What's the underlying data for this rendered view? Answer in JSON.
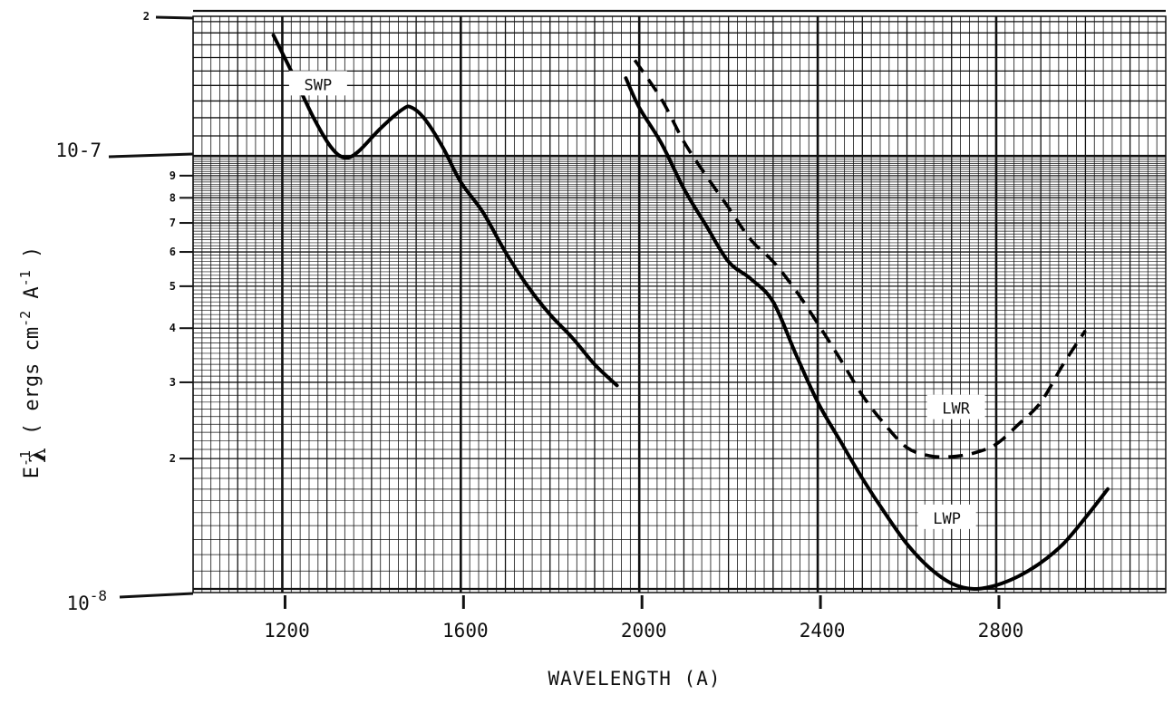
{
  "chart_data": {
    "type": "line",
    "title": "",
    "xlabel": "WAVELENGTH (A)",
    "ylabel": {
      "symbol": "E",
      "superscript": "-1",
      "subscript": "λ",
      "units_open": "( ergs cm",
      "units_exp1": "-2",
      "units_mid": " A",
      "units_exp2": "-1",
      "units_close": " )"
    },
    "x_scale": "linear",
    "y_scale": "log",
    "xlim": [
      1000,
      3180
    ],
    "ylim": [
      1e-08,
      2e-07
    ],
    "grid": true,
    "x_tick_values": [
      1200,
      1600,
      2000,
      2400,
      2800
    ],
    "x_tick_labels": [
      "1200",
      "1600",
      "2000",
      "2400",
      "2800"
    ],
    "y_major_ticks": [
      {
        "value": 2e-07,
        "label": "2"
      },
      {
        "value": 1e-07,
        "label": "10-7"
      },
      {
        "value": 1e-08,
        "base": "10",
        "exp": "-8"
      }
    ],
    "y_minor_ticks": [
      {
        "value": 9e-08,
        "label": "9"
      },
      {
        "value": 8e-08,
        "label": "8"
      },
      {
        "value": 7e-08,
        "label": "7"
      },
      {
        "value": 6e-08,
        "label": "6"
      },
      {
        "value": 5e-08,
        "label": "5"
      },
      {
        "value": 4e-08,
        "label": "4"
      },
      {
        "value": 3e-08,
        "label": "3"
      },
      {
        "value": 2e-08,
        "label": "2"
      }
    ],
    "series": [
      {
        "name": "SWP",
        "style": "solid",
        "x": [
          1180,
          1220,
          1270,
          1310,
          1340,
          1370,
          1420,
          1470,
          1490,
          1520,
          1560,
          1600,
          1650,
          1700,
          1750,
          1800,
          1850,
          1900,
          1950
        ],
        "y": [
          1.78e-07,
          1.5e-07,
          1.2e-07,
          1.04e-07,
          9.9e-08,
          1.02e-07,
          1.14e-07,
          1.25e-07,
          1.26e-07,
          1.19e-07,
          1.04e-07,
          8.7e-08,
          7.4e-08,
          6e-08,
          5e-08,
          4.3e-08,
          3.8e-08,
          3.3e-08,
          2.95e-08
        ]
      },
      {
        "name": "LWP",
        "style": "solid",
        "x": [
          1970,
          2000,
          2050,
          2100,
          2150,
          2200,
          2250,
          2300,
          2350,
          2400,
          2450,
          2500,
          2550,
          2600,
          2650,
          2700,
          2750,
          2800,
          2850,
          2900,
          2950,
          3000,
          3050
        ],
        "y": [
          1.45e-07,
          1.26e-07,
          1.06e-07,
          8.4e-08,
          6.9e-08,
          5.7e-08,
          5.2e-08,
          4.6e-08,
          3.5e-08,
          2.7e-08,
          2.2e-08,
          1.8e-08,
          1.5e-08,
          1.27e-08,
          1.12e-08,
          1.03e-08,
          1e-08,
          1.02e-08,
          1.07e-08,
          1.15e-08,
          1.27e-08,
          1.46e-08,
          1.7e-08
        ]
      },
      {
        "name": "LWR",
        "style": "dashed",
        "x": [
          1990,
          2050,
          2100,
          2150,
          2200,
          2250,
          2300,
          2350,
          2400,
          2450,
          2500,
          2550,
          2600,
          2650,
          2700,
          2750,
          2800,
          2850,
          2900,
          2950,
          3000
        ],
        "y": [
          1.58e-07,
          1.31e-07,
          1.07e-07,
          9e-08,
          7.6e-08,
          6.4e-08,
          5.7e-08,
          4.9e-08,
          4.1e-08,
          3.4e-08,
          2.8e-08,
          2.4e-08,
          2.12e-08,
          2.03e-08,
          2.02e-08,
          2.06e-08,
          2.16e-08,
          2.4e-08,
          2.7e-08,
          3.3e-08,
          3.95e-08
        ]
      }
    ]
  }
}
